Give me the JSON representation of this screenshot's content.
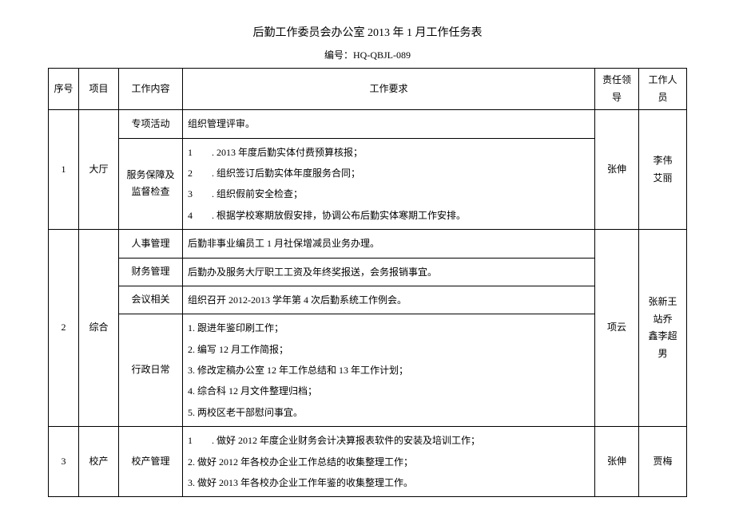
{
  "title": "后勤工作委员会办公室 2013 年 1 月工作任务表",
  "doc_no": "编号：HQ-QBJL-089",
  "headers": {
    "seq": "序号",
    "project": "项目",
    "content": "工作内容",
    "requirement": "工作要求",
    "leader": "责任领导",
    "staff": "工作人员"
  },
  "rows": [
    {
      "seq": "1",
      "project": "大厅",
      "leader": "张伸",
      "staff_lines": [
        "李伟",
        "艾丽"
      ],
      "items": [
        {
          "content": "专项活动",
          "req_lines": [
            "组织管理评审。"
          ]
        },
        {
          "content": "服务保障及监督检查",
          "req_lines": [
            "1　　. 2013 年度后勤实体付费预算核报；",
            "2　　. 组织签订后勤实体年度服务合同；",
            "3　　. 组织假前安全检查；",
            "4　　. 根据学校寒期放假安排，协调公布后勤实体寒期工作安排。"
          ]
        }
      ]
    },
    {
      "seq": "2",
      "project": "综合",
      "leader": "项云",
      "staff_lines": [
        "张新王站乔",
        "鑫李超男"
      ],
      "items": [
        {
          "content": "人事管理",
          "req_lines": [
            "后勤非事业编员工 1 月社保增减员业务办理。"
          ]
        },
        {
          "content": "财务管理",
          "req_lines": [
            "后勤办及服务大厅职工工资及年终奖报送，会务报销事宜。"
          ]
        },
        {
          "content": "会议相关",
          "req_lines": [
            "组织召开 2012-2013 学年第 4 次后勤系统工作例会。"
          ]
        },
        {
          "content": "行政日常",
          "req_lines": [
            "1. 跟进年鉴印刷工作；",
            "2. 编写 12 月工作简报；",
            "3. 修改定稿办公室 12 年工作总结和 13 年工作计划；",
            "4. 综合科 12 月文件整理归档；",
            "5. 两校区老干部慰问事宜。"
          ]
        }
      ]
    },
    {
      "seq": "3",
      "project": "校产",
      "leader": "张伸",
      "staff_lines": [
        "贾梅"
      ],
      "items": [
        {
          "content": "校产管理",
          "req_lines": [
            "1　　. 做好 2012 年度企业财务会计决算报表软件的安装及培训工作；",
            "2. 做好 2012 年各校办企业工作总结的收集整理工作；",
            "3. 做好 2013 年各校办企业工作年鉴的收集整理工作。"
          ]
        }
      ]
    }
  ]
}
